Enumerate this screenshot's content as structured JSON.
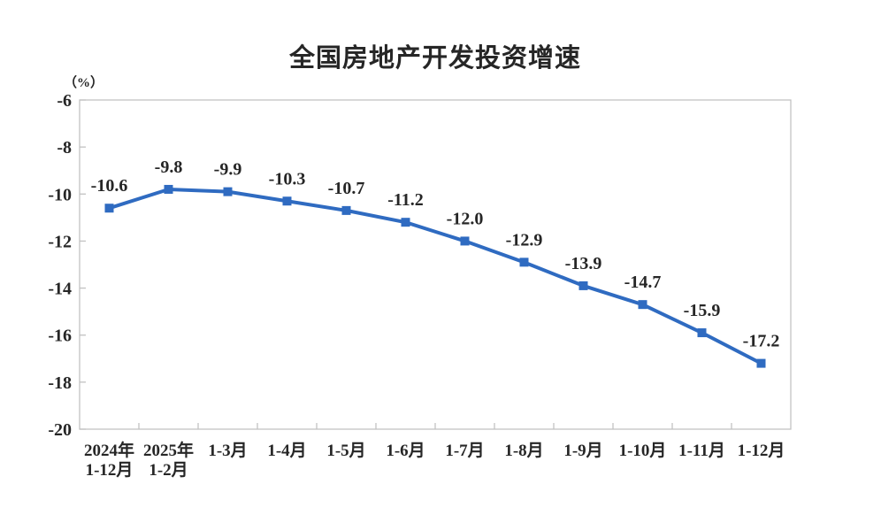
{
  "page": {
    "title": "全国房地产开发投资增速"
  },
  "colors": {
    "line": "#2F6BC1",
    "axis": "#C2C2C2",
    "text": "#262626"
  },
  "chart_data": {
    "type": "line",
    "title": "全国房地产开发投资增速",
    "ylabel": "（%）",
    "xlabel": "",
    "categories": [
      [
        "2024年",
        "1-12月"
      ],
      [
        "2025年",
        "1-2月"
      ],
      [
        "1-3月"
      ],
      [
        "1-4月"
      ],
      [
        "1-5月"
      ],
      [
        "1-6月"
      ],
      [
        "1-7月"
      ],
      [
        "1-8月"
      ],
      [
        "1-9月"
      ],
      [
        "1-10月"
      ],
      [
        "1-11月"
      ],
      [
        "1-12月"
      ]
    ],
    "values": [
      -10.6,
      -9.8,
      -9.9,
      -10.3,
      -10.7,
      -11.2,
      -12.0,
      -12.9,
      -13.9,
      -14.7,
      -15.9,
      -17.2
    ],
    "labels": [
      "-10.6",
      "-9.8",
      "-9.9",
      "-10.3",
      "-10.7",
      "-11.2",
      "-12.0",
      "-12.9",
      "-13.9",
      "-14.7",
      "-15.9",
      "-17.2"
    ],
    "ylim": [
      -20,
      -6
    ],
    "yticks": [
      "-6",
      "-8",
      "-10",
      "-12",
      "-14",
      "-16",
      "-18",
      "-20"
    ],
    "grid": false,
    "legend": null
  }
}
